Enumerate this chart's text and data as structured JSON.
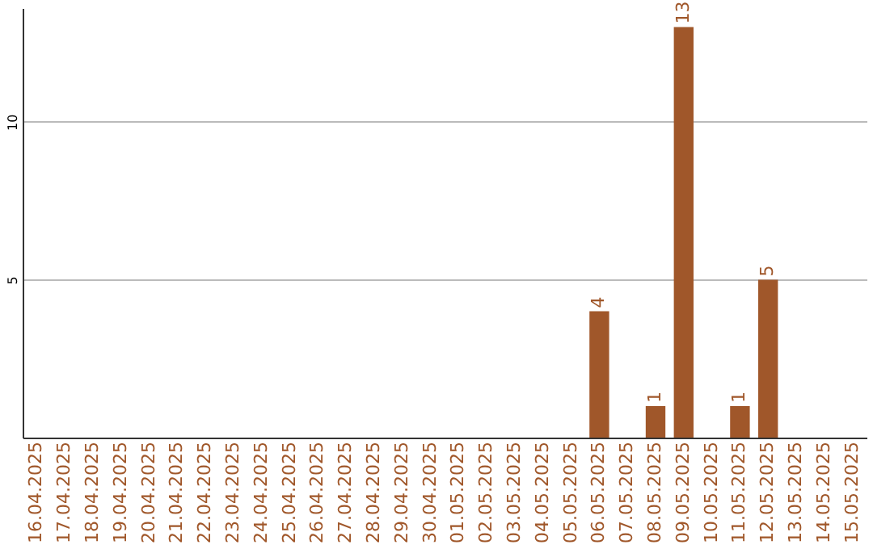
{
  "chart_data": {
    "type": "bar",
    "categories": [
      "16.04.2025",
      "17.04.2025",
      "18.04.2025",
      "19.04.2025",
      "20.04.2025",
      "21.04.2025",
      "22.04.2025",
      "23.04.2025",
      "24.04.2025",
      "25.04.2025",
      "26.04.2025",
      "27.04.2025",
      "28.04.2025",
      "29.04.2025",
      "30.04.2025",
      "01.05.2025",
      "02.05.2025",
      "03.05.2025",
      "04.05.2025",
      "05.05.2025",
      "06.05.2025",
      "07.05.2025",
      "08.05.2025",
      "09.05.2025",
      "10.05.2025",
      "11.05.2025",
      "12.05.2025",
      "13.05.2025",
      "14.05.2025",
      "15.05.2025"
    ],
    "values": [
      0,
      0,
      0,
      0,
      0,
      0,
      0,
      0,
      0,
      0,
      0,
      0,
      0,
      0,
      0,
      0,
      0,
      0,
      0,
      0,
      4,
      0,
      1,
      13,
      0,
      1,
      5,
      0,
      0,
      0
    ],
    "value_labels": [
      null,
      null,
      null,
      null,
      null,
      null,
      null,
      null,
      null,
      null,
      null,
      null,
      null,
      null,
      null,
      null,
      null,
      null,
      null,
      null,
      "4",
      null,
      "1",
      "13",
      null,
      "1",
      "5",
      null,
      null,
      null
    ],
    "color": "#a0572a",
    "ylim": [
      0,
      13.6
    ],
    "yticks": [
      5,
      10
    ],
    "grid": "y"
  }
}
